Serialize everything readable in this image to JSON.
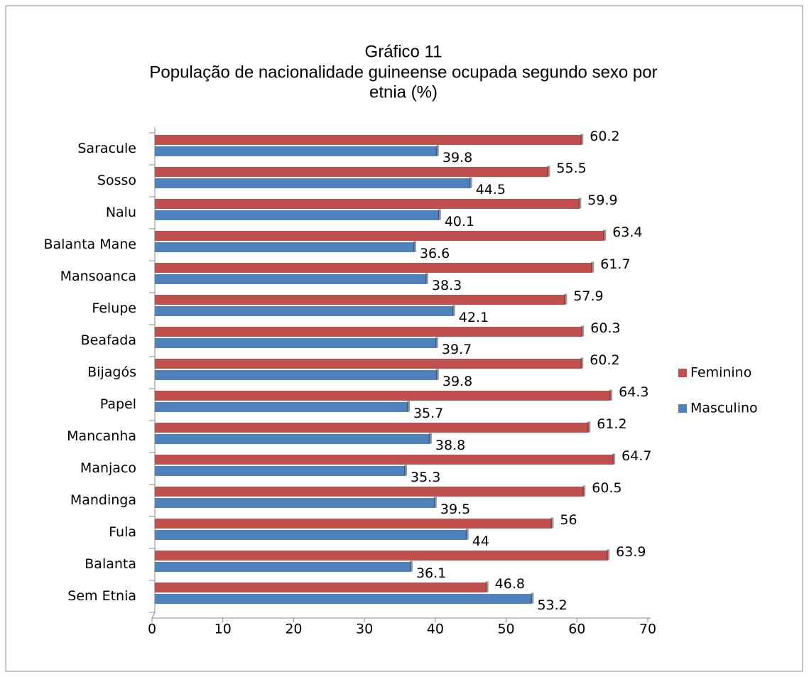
{
  "chart_data": {
    "type": "bar",
    "orientation": "horizontal",
    "title": [
      "Gráfico 11",
      "População de nacionalidade guineense  ocupada segundo sexo por",
      "etnia (%)"
    ],
    "categories": [
      "Saracule",
      "Sosso",
      "Nalu",
      "Balanta Mane",
      "Mansoanca",
      "Felupe",
      "Beafada",
      "Bijagós",
      "Papel",
      "Mancanha",
      "Manjaco",
      "Mandinga",
      "Fula",
      "Balanta",
      "Sem Etnia"
    ],
    "series": [
      {
        "name": "Feminino",
        "color": "#c0504d",
        "values": [
          60.2,
          55.5,
          59.9,
          63.4,
          61.7,
          57.9,
          60.3,
          60.2,
          64.3,
          61.2,
          64.7,
          60.5,
          56,
          63.9,
          46.8
        ]
      },
      {
        "name": "Masculino",
        "color": "#4f81bd",
        "values": [
          39.8,
          44.5,
          40.1,
          36.6,
          38.3,
          42.1,
          39.7,
          39.8,
          35.7,
          38.8,
          35.3,
          39.5,
          44,
          36.1,
          53.2
        ]
      }
    ],
    "xlim": [
      0,
      70
    ],
    "xticks": [
      0,
      10,
      20,
      30,
      40,
      50,
      60,
      70
    ],
    "legend": "right"
  }
}
